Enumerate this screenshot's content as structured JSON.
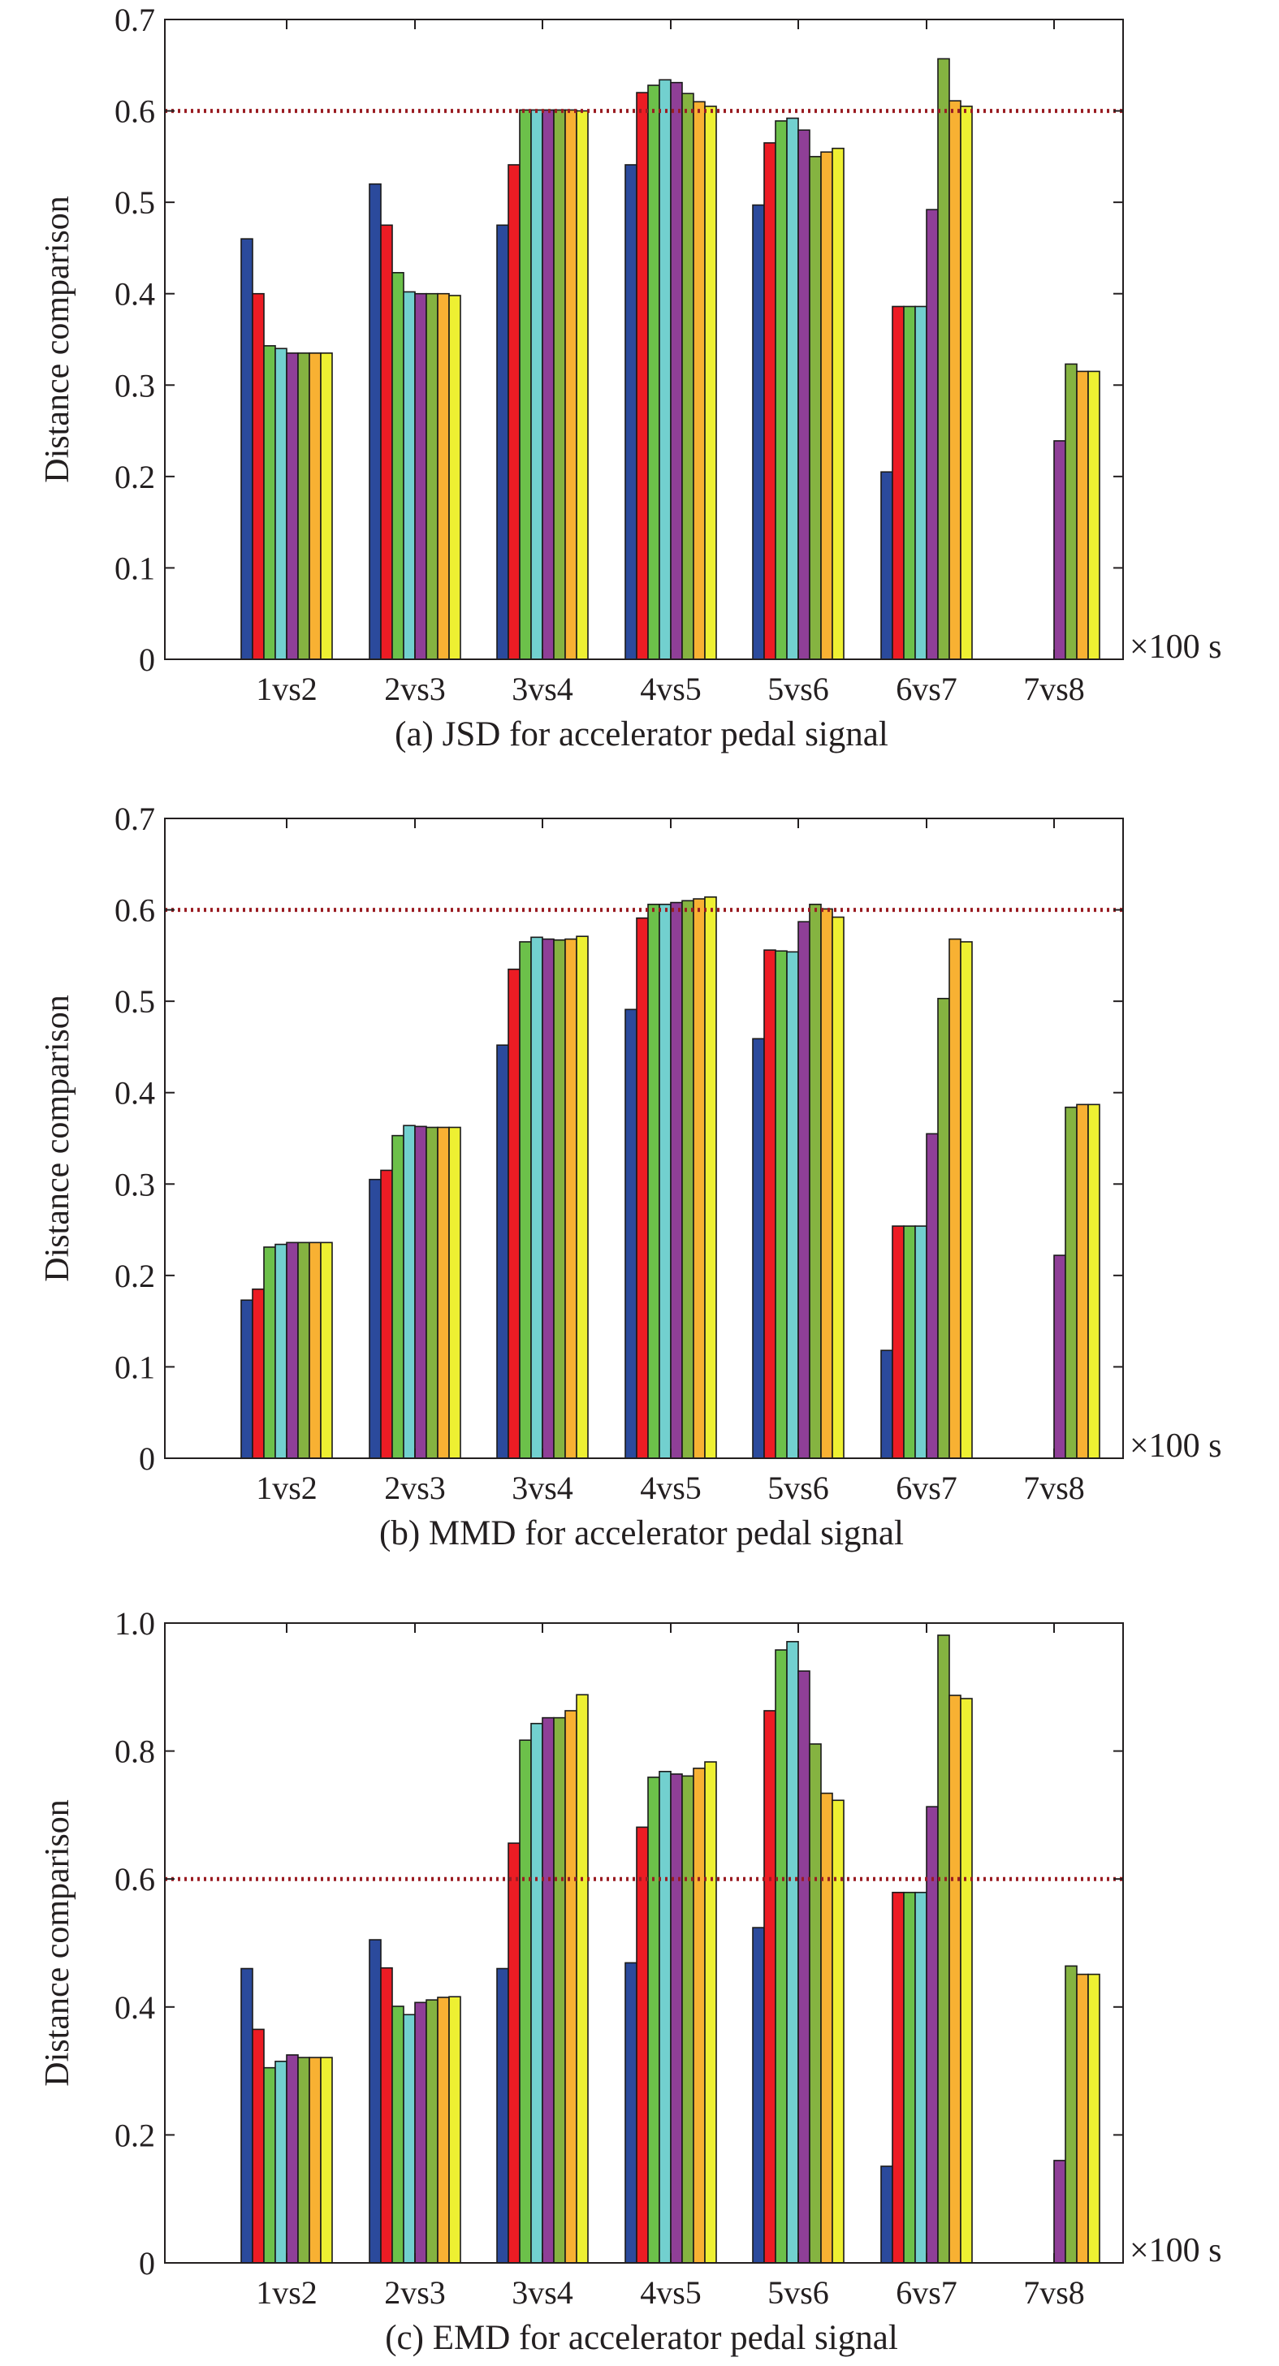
{
  "figure": {
    "colors": [
      "#2b4a9c",
      "#ec1c24",
      "#6cc04a",
      "#72d0cf",
      "#8f3f97",
      "#85b341",
      "#f8b133",
      "#eef032"
    ],
    "threshold_color": "#9a1c22",
    "unit_label": "×100 s"
  },
  "chart_data": [
    {
      "type": "bar",
      "caption": "(a) JSD for accelerator pedal signal",
      "ylabel": "Distance comparison",
      "xlabel": "",
      "categories": [
        "1vs2",
        "2vs3",
        "3vs4",
        "4vs5",
        "5vs6",
        "6vs7",
        "7vs8"
      ],
      "ylim": [
        0,
        0.7
      ],
      "yticks": [
        "0",
        "0.1",
        "0.2",
        "0.3",
        "0.4",
        "0.5",
        "0.6",
        "0.7"
      ],
      "threshold": 0.6,
      "grid": false,
      "bars_per_group": 8,
      "values": [
        [
          0.46,
          0.4,
          0.343,
          0.34,
          0.335,
          0.335,
          0.335,
          0.335
        ],
        [
          0.52,
          0.475,
          0.423,
          0.402,
          0.4,
          0.4,
          0.4,
          0.398
        ],
        [
          0.475,
          0.541,
          0.601,
          0.601,
          0.601,
          0.601,
          0.601,
          0.6
        ],
        [
          0.541,
          0.62,
          0.628,
          0.634,
          0.631,
          0.619,
          0.61,
          0.605
        ],
        [
          0.497,
          0.565,
          0.589,
          0.592,
          0.579,
          0.55,
          0.555,
          0.559
        ],
        [
          0.205,
          0.386,
          0.386,
          0.386,
          0.492,
          0.657,
          0.611,
          0.605
        ],
        [
          null,
          null,
          null,
          null,
          0.239,
          0.323,
          0.315,
          0.315
        ]
      ]
    },
    {
      "type": "bar",
      "caption": "(b) MMD for accelerator pedal signal",
      "ylabel": "Distance comparison",
      "xlabel": "",
      "categories": [
        "1vs2",
        "2vs3",
        "3vs4",
        "4vs5",
        "5vs6",
        "6vs7",
        "7vs8"
      ],
      "ylim": [
        0,
        0.7
      ],
      "yticks": [
        "0",
        "0.1",
        "0.2",
        "0.3",
        "0.4",
        "0.5",
        "0.6",
        "0.7"
      ],
      "threshold": 0.6,
      "grid": false,
      "bars_per_group": 8,
      "values": [
        [
          0.173,
          0.185,
          0.231,
          0.234,
          0.236,
          0.236,
          0.236,
          0.236
        ],
        [
          0.305,
          0.315,
          0.353,
          0.364,
          0.363,
          0.362,
          0.362,
          0.362
        ],
        [
          0.452,
          0.535,
          0.565,
          0.57,
          0.568,
          0.567,
          0.568,
          0.571
        ],
        [
          0.491,
          0.591,
          0.606,
          0.606,
          0.608,
          0.61,
          0.612,
          0.614
        ],
        [
          0.459,
          0.556,
          0.555,
          0.554,
          0.587,
          0.606,
          0.601,
          0.592
        ],
        [
          0.118,
          0.254,
          0.254,
          0.254,
          0.355,
          0.503,
          0.568,
          0.565
        ],
        [
          null,
          null,
          null,
          null,
          0.222,
          0.384,
          0.387,
          0.387
        ]
      ]
    },
    {
      "type": "bar",
      "caption": "(c) EMD for accelerator pedal signal",
      "ylabel": "Distance comparison",
      "xlabel": "",
      "categories": [
        "1vs2",
        "2vs3",
        "3vs4",
        "4vs5",
        "5vs6",
        "6vs7",
        "7vs8"
      ],
      "ylim": [
        0,
        1.0
      ],
      "yticks": [
        "0",
        "0.2",
        "0.4",
        "0.6",
        "0.8",
        "1.0"
      ],
      "threshold": 0.6,
      "grid": false,
      "bars_per_group": 8,
      "values": [
        [
          0.46,
          0.365,
          0.305,
          0.315,
          0.325,
          0.321,
          0.321,
          0.321
        ],
        [
          0.505,
          0.461,
          0.401,
          0.388,
          0.407,
          0.411,
          0.415,
          0.416
        ],
        [
          0.46,
          0.656,
          0.817,
          0.843,
          0.852,
          0.852,
          0.863,
          0.888
        ],
        [
          0.469,
          0.681,
          0.759,
          0.768,
          0.764,
          0.761,
          0.773,
          0.783
        ],
        [
          0.524,
          0.863,
          0.958,
          0.971,
          0.925,
          0.811,
          0.734,
          0.723
        ],
        [
          0.151,
          0.579,
          0.579,
          0.579,
          0.713,
          0.981,
          0.887,
          0.882
        ],
        [
          null,
          null,
          null,
          null,
          0.16,
          0.464,
          0.451,
          0.451
        ]
      ]
    }
  ]
}
